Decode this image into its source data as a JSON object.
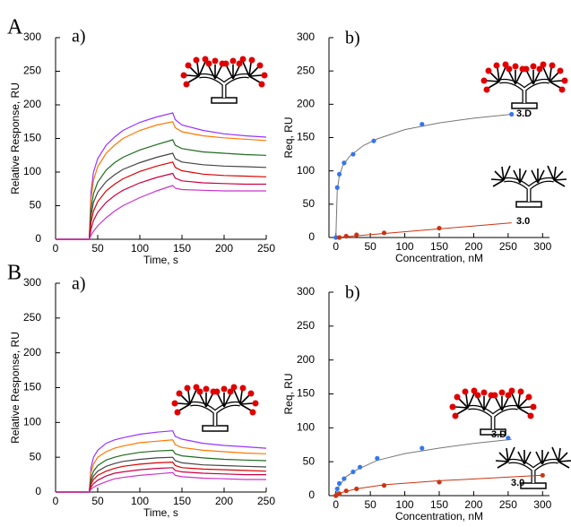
{
  "figure_labels": [
    "A",
    "B"
  ],
  "chart_data": [
    {
      "type": "line",
      "label": "a)",
      "x_label": "Time, s",
      "y_label": "Relative Response, RU",
      "xlim": [
        0,
        250
      ],
      "xticks": [
        0,
        50,
        100,
        150,
        200,
        250
      ],
      "ylim": [
        0,
        300
      ],
      "yticks": [
        0,
        50,
        100,
        150,
        200,
        250,
        300
      ],
      "x": [
        0,
        38,
        40,
        42,
        45,
        50,
        60,
        70,
        80,
        100,
        120,
        139,
        142,
        150,
        175,
        200,
        225,
        250
      ],
      "series": [
        {
          "color": "#9933ff",
          "values": [
            0,
            0,
            0,
            70,
            100,
            120,
            140,
            152,
            162,
            174,
            182,
            188,
            178,
            170,
            162,
            157,
            154,
            152
          ]
        },
        {
          "color": "#ff7700",
          "values": [
            0,
            0,
            0,
            60,
            88,
            108,
            128,
            140,
            150,
            162,
            170,
            175,
            166,
            160,
            154,
            151,
            149,
            147
          ]
        },
        {
          "color": "#1f6b1f",
          "values": [
            0,
            0,
            0,
            45,
            68,
            85,
            103,
            114,
            122,
            133,
            141,
            148,
            140,
            135,
            130,
            128,
            126,
            125
          ]
        },
        {
          "color": "#444444",
          "values": [
            0,
            0,
            0,
            35,
            55,
            70,
            86,
            96,
            104,
            114,
            122,
            128,
            120,
            115,
            111,
            109,
            108,
            107
          ]
        },
        {
          "color": "#dd0000",
          "values": [
            0,
            0,
            0,
            25,
            42,
            56,
            72,
            82,
            90,
            101,
            109,
            115,
            107,
            102,
            97,
            95,
            94,
            93
          ]
        },
        {
          "color": "#cc0044",
          "values": [
            0,
            0,
            0,
            15,
            28,
            40,
            55,
            65,
            73,
            84,
            92,
            98,
            91,
            87,
            84,
            83,
            82,
            82
          ]
        },
        {
          "color": "#cc33cc",
          "values": [
            0,
            0,
            0,
            6,
            12,
            20,
            32,
            42,
            50,
            62,
            72,
            80,
            76,
            74,
            73,
            72,
            72,
            72
          ]
        }
      ]
    },
    {
      "type": "scatter",
      "label": "b)",
      "x_label": "Concentration, nM",
      "y_label": "Req, RU",
      "xlim": [
        -10,
        310
      ],
      "xticks": [
        0,
        50,
        100,
        150,
        200,
        250,
        300
      ],
      "ylim": [
        0,
        300
      ],
      "yticks": [
        0,
        50,
        100,
        150,
        200,
        250,
        300
      ],
      "series": [
        {
          "name": "3.D",
          "color": "#3377ee",
          "fit_color": "#777777",
          "x": [
            0,
            2,
            5,
            12,
            25,
            55,
            125,
            255
          ],
          "values": [
            0,
            75,
            95,
            112,
            125,
            145,
            170,
            185
          ],
          "fit": {
            "x": [
              0,
              2,
              5,
              10,
              20,
              40,
              60,
              100,
              150,
              200,
              255
            ],
            "values": [
              0,
              70,
              92,
              108,
              122,
              138,
              148,
              162,
              172,
              179,
              185
            ]
          }
        },
        {
          "name": "3.0",
          "color": "#cc3311",
          "fit_color": "#cc3311",
          "x": [
            5,
            15,
            30,
            70,
            150
          ],
          "values": [
            0,
            2,
            4,
            7,
            14
          ],
          "fit": {
            "x": [
              0,
              255
            ],
            "values": [
              0,
              22
            ]
          }
        }
      ]
    },
    {
      "type": "line",
      "label": "a)",
      "x_label": "Time, s",
      "y_label": "Relative Response, RU",
      "xlim": [
        0,
        250
      ],
      "xticks": [
        0,
        50,
        100,
        150,
        200,
        250
      ],
      "ylim": [
        0,
        300
      ],
      "yticks": [
        0,
        50,
        100,
        150,
        200,
        250,
        300
      ],
      "x": [
        0,
        38,
        40,
        42,
        45,
        50,
        60,
        70,
        80,
        100,
        120,
        139,
        142,
        150,
        175,
        200,
        225,
        250
      ],
      "series": [
        {
          "color": "#9933ff",
          "values": [
            0,
            0,
            0,
            35,
            50,
            60,
            70,
            75,
            78,
            83,
            86,
            88,
            80,
            76,
            70,
            67,
            65,
            63
          ]
        },
        {
          "color": "#ff7700",
          "values": [
            0,
            0,
            0,
            28,
            40,
            50,
            58,
            63,
            66,
            71,
            73,
            75,
            68,
            64,
            60,
            58,
            56,
            55
          ]
        },
        {
          "color": "#1f6b1f",
          "values": [
            0,
            0,
            0,
            20,
            30,
            38,
            46,
            50,
            53,
            57,
            59,
            60,
            55,
            52,
            49,
            47,
            46,
            45
          ]
        },
        {
          "color": "#444444",
          "values": [
            0,
            0,
            0,
            15,
            23,
            30,
            37,
            41,
            44,
            47,
            49,
            50,
            45,
            42,
            39,
            38,
            37,
            36
          ]
        },
        {
          "color": "#dd0000",
          "values": [
            0,
            0,
            0,
            11,
            18,
            24,
            30,
            34,
            37,
            40,
            42,
            43,
            38,
            35,
            33,
            32,
            31,
            30
          ]
        },
        {
          "color": "#cc0044",
          "values": [
            0,
            0,
            0,
            7,
            12,
            17,
            23,
            27,
            29,
            32,
            34,
            35,
            31,
            29,
            27,
            26,
            25,
            25
          ]
        },
        {
          "color": "#cc33cc",
          "values": [
            0,
            0,
            0,
            4,
            7,
            10,
            15,
            19,
            21,
            24,
            26,
            28,
            24,
            22,
            20,
            19,
            18,
            18
          ]
        }
      ]
    },
    {
      "type": "scatter",
      "label": "b)",
      "x_label": "Concentration, nM",
      "y_label": "Req, RU",
      "xlim": [
        -10,
        310
      ],
      "xticks": [
        0,
        50,
        100,
        150,
        200,
        250,
        300
      ],
      "ylim": [
        0,
        300
      ],
      "yticks": [
        0,
        50,
        100,
        150,
        200,
        250,
        300
      ],
      "series": [
        {
          "name": "3.D",
          "color": "#3377ee",
          "fit_color": "#777777",
          "x": [
            0,
            2,
            5,
            12,
            25,
            35,
            60,
            125,
            250
          ],
          "values": [
            0,
            10,
            18,
            25,
            35,
            42,
            55,
            70,
            85
          ],
          "fit": {
            "x": [
              0,
              5,
              15,
              30,
              60,
              100,
              150,
              200,
              255
            ],
            "values": [
              0,
              15,
              28,
              38,
              52,
              62,
              70,
              77,
              83
            ]
          }
        },
        {
          "name": "3.0",
          "color": "#cc3311",
          "fit_color": "#cc3311",
          "x": [
            0,
            5,
            15,
            30,
            70,
            150,
            300
          ],
          "values": [
            0,
            3,
            7,
            10,
            15,
            20,
            30
          ],
          "fit": {
            "x": [
              0,
              10,
              30,
              70,
              150,
              300
            ],
            "values": [
              0,
              5,
              10,
              16,
              22,
              30
            ]
          }
        }
      ]
    }
  ]
}
